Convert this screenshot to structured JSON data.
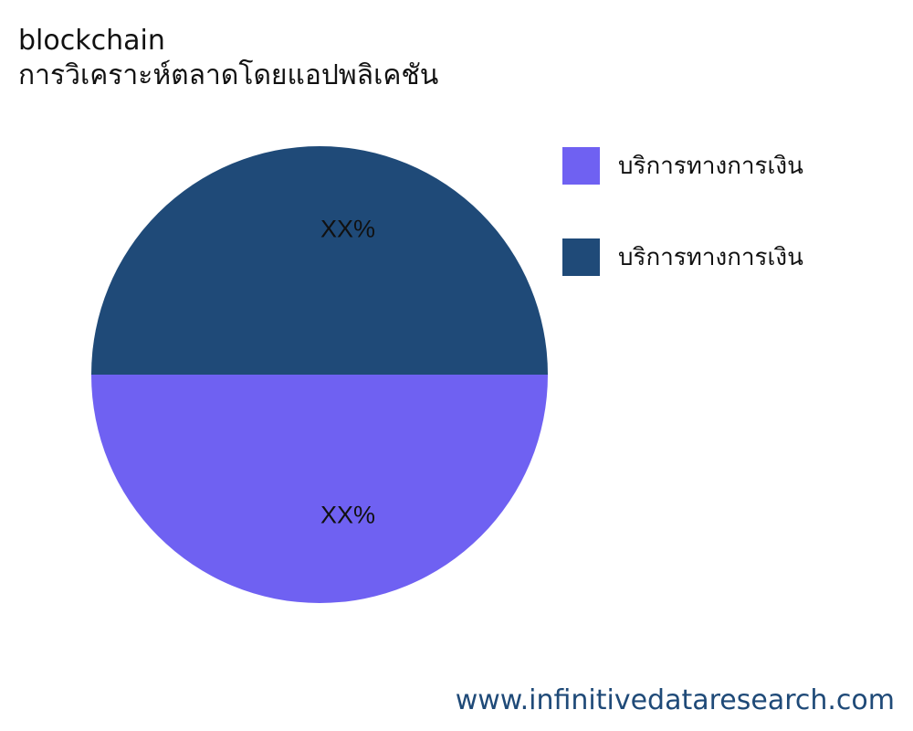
{
  "chart_data": {
    "type": "pie",
    "title": "blockchain",
    "subtitle": "การวิเคราะห์ตลาดโดยแอปพลิเคชัน",
    "slices": [
      {
        "label": "บริการทางการเงิน",
        "value": 50,
        "display_label": "XX%",
        "color": "#6f61f2"
      },
      {
        "label": "บริการทางการเงิน",
        "value": 50,
        "display_label": "XX%",
        "color": "#1f4a78"
      }
    ],
    "legend": [
      {
        "label": "บริการทางการเงิน",
        "color": "#6f61f2"
      },
      {
        "label": "บริการทางการเงิน",
        "color": "#1f4a78"
      }
    ],
    "legend_position": "right"
  },
  "footer": {
    "website": "www.infinitivedataresearch.com"
  },
  "colors": {
    "watermark": "#1f4a78"
  }
}
